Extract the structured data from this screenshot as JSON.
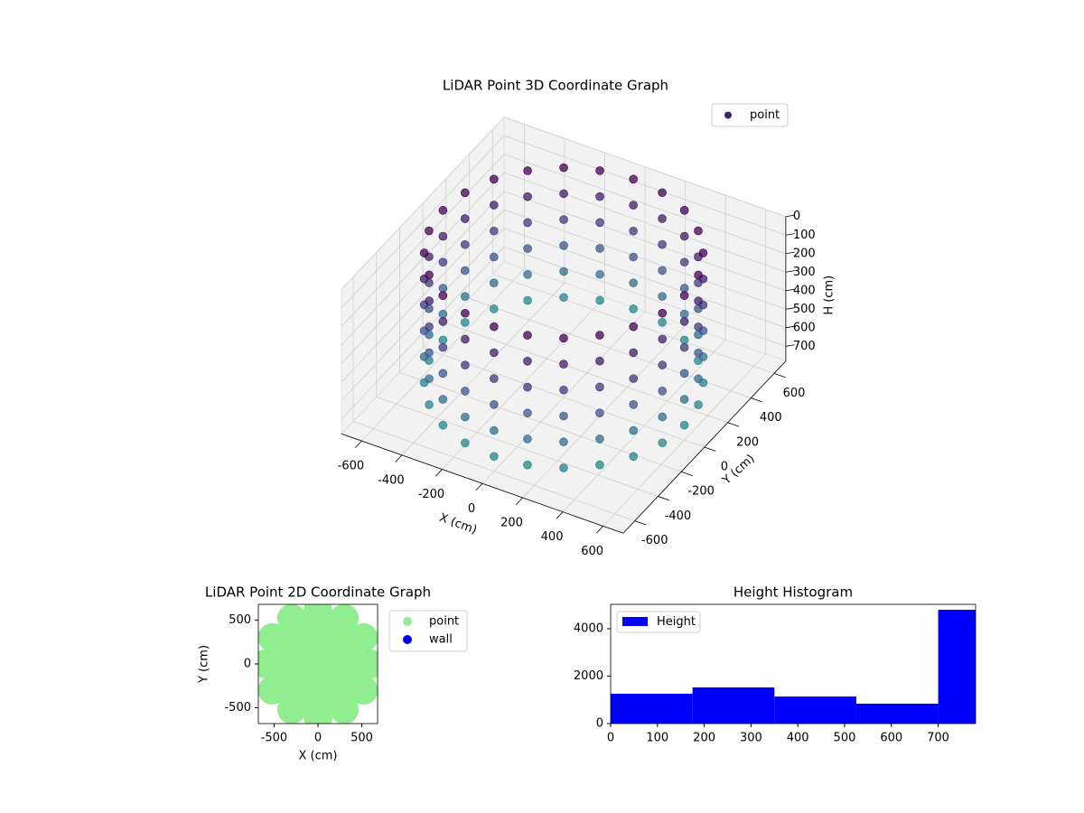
{
  "chart_data": [
    {
      "type": "scatter3d",
      "title": "LiDAR Point 3D Coordinate Graph",
      "xlabel": "X (cm)",
      "ylabel": "Y (cm)",
      "zlabel": "H (cm)",
      "series": [
        {
          "name": "point",
          "color": "#46216e",
          "x": [
            600,
            580,
            520,
            424,
            300,
            155,
            0,
            -155,
            -300,
            -424,
            -520,
            -580,
            -600,
            -580,
            -520,
            -424,
            -300,
            -155,
            0,
            155,
            300,
            424,
            520,
            580,
            600,
            580,
            520,
            424,
            300,
            155,
            0,
            -155,
            -300,
            -424,
            -520,
            -580,
            -600,
            -580,
            -520,
            -424,
            -300,
            -155,
            0,
            155,
            300,
            424,
            520,
            580,
            600,
            580,
            520,
            424,
            300,
            155,
            0,
            -155,
            -300,
            -424,
            -520,
            -580,
            -600,
            -580,
            -520,
            -424,
            -300,
            -155,
            0,
            155,
            300,
            424,
            520,
            580,
            600,
            580,
            520,
            424,
            300,
            155,
            0,
            -155,
            -300,
            -424,
            -520,
            -580,
            -600,
            -580,
            -520,
            -424,
            -300,
            -155,
            0,
            155,
            300,
            424,
            520,
            580,
            600,
            580,
            520,
            424,
            300,
            155,
            0,
            -155,
            -300,
            -424,
            -520,
            -580,
            -600,
            -580,
            -520,
            -424,
            -300,
            -155,
            0,
            155,
            300,
            424,
            520,
            580,
            600,
            580,
            520,
            424,
            300,
            155,
            0,
            -155,
            -300,
            -424,
            -520,
            -580,
            -600,
            -580,
            -520,
            -424,
            -300,
            -155,
            0,
            155,
            300,
            424,
            520,
            580
          ],
          "y": [
            0,
            155,
            300,
            424,
            520,
            580,
            600,
            580,
            520,
            424,
            300,
            155,
            0,
            -155,
            -300,
            -424,
            -520,
            -580,
            -600,
            -580,
            -520,
            -424,
            -300,
            -155,
            0,
            155,
            300,
            424,
            520,
            580,
            600,
            580,
            520,
            424,
            300,
            155,
            0,
            -155,
            -300,
            -424,
            -520,
            -580,
            -600,
            -580,
            -520,
            -424,
            -300,
            -155,
            0,
            155,
            300,
            424,
            520,
            580,
            600,
            580,
            520,
            424,
            300,
            155,
            0,
            -155,
            -300,
            -424,
            -520,
            -580,
            -600,
            -580,
            -520,
            -424,
            -300,
            -155,
            0,
            155,
            300,
            424,
            520,
            580,
            600,
            580,
            520,
            424,
            300,
            155,
            0,
            -155,
            -300,
            -424,
            -520,
            -580,
            -600,
            -580,
            -520,
            -424,
            -300,
            -155,
            0,
            155,
            300,
            424,
            520,
            580,
            600,
            580,
            520,
            424,
            300,
            155,
            0,
            -155,
            -300,
            -424,
            -520,
            -580,
            -600,
            -580,
            -520,
            -424,
            -300,
            -155,
            0,
            155,
            300,
            424,
            520,
            580,
            600,
            580,
            520,
            424,
            300,
            155,
            0,
            -155,
            -300,
            -424,
            -520,
            -580,
            -600,
            -580,
            -520,
            -424,
            -300,
            -155
          ],
          "z": [
            0,
            0,
            0,
            0,
            0,
            0,
            0,
            0,
            0,
            0,
            0,
            0,
            0,
            0,
            0,
            0,
            0,
            0,
            0,
            0,
            0,
            0,
            0,
            0,
            140,
            140,
            140,
            140,
            140,
            140,
            140,
            140,
            140,
            140,
            140,
            140,
            140,
            140,
            140,
            140,
            140,
            140,
            140,
            140,
            140,
            140,
            140,
            140,
            280,
            280,
            280,
            280,
            280,
            280,
            280,
            280,
            280,
            280,
            280,
            280,
            280,
            280,
            280,
            280,
            280,
            280,
            280,
            280,
            280,
            280,
            280,
            280,
            420,
            420,
            420,
            420,
            420,
            420,
            420,
            420,
            420,
            420,
            420,
            420,
            420,
            420,
            420,
            420,
            420,
            420,
            420,
            420,
            420,
            420,
            420,
            420,
            560,
            560,
            560,
            560,
            560,
            560,
            560,
            560,
            560,
            560,
            560,
            560,
            560,
            560,
            560,
            560,
            560,
            560,
            560,
            560,
            560,
            560,
            560,
            560,
            700,
            700,
            700,
            700,
            700,
            700,
            700,
            700,
            700,
            700,
            700,
            700,
            700,
            700,
            700,
            700,
            700,
            700,
            700,
            700,
            700,
            700,
            700,
            700
          ]
        }
      ],
      "colormap": [
        "#440154",
        "#3b528b",
        "#21918c"
      ],
      "xlim": [
        -700,
        700
      ],
      "ylim": [
        -700,
        700
      ],
      "zlim": [
        780,
        0
      ],
      "xticks": [
        -600,
        -400,
        -200,
        0,
        200,
        400,
        600
      ],
      "yticks": [
        -600,
        -400,
        -200,
        0,
        200,
        400,
        600
      ],
      "zticks": [
        0,
        100,
        200,
        300,
        400,
        500,
        600,
        700
      ],
      "azim": -60,
      "elev": 30,
      "grid": true,
      "legend": "upper right"
    },
    {
      "type": "scatter",
      "title": "LiDAR Point 2D Coordinate Graph",
      "xlabel": "X (cm)",
      "ylabel": "Y (cm)",
      "series": [
        {
          "name": "point",
          "color": "#90ee90",
          "x": [
            600,
            520,
            300,
            0,
            -300,
            -520,
            -600,
            -520,
            -300,
            0,
            300,
            520,
            400,
            346,
            200,
            0,
            -200,
            -346,
            -400,
            -346,
            -200,
            0,
            200,
            346,
            200,
            100,
            -100,
            -200,
            -100,
            100,
            0
          ],
          "y": [
            0,
            300,
            520,
            600,
            520,
            300,
            0,
            -300,
            -520,
            -600,
            -520,
            -300,
            0,
            200,
            346,
            400,
            346,
            200,
            0,
            -200,
            -346,
            -400,
            -346,
            -200,
            0,
            173,
            173,
            0,
            -173,
            -173,
            0
          ]
        },
        {
          "name": "wall",
          "color": "#0000ff",
          "x": [],
          "y": []
        }
      ],
      "xlim": [
        -680,
        680
      ],
      "ylim": [
        -680,
        680
      ],
      "xticks": [
        -500,
        0,
        500
      ],
      "yticks": [
        -500,
        0,
        500
      ],
      "legend": "outside right"
    },
    {
      "type": "hist",
      "title": "Height Histogram",
      "series": [
        {
          "name": "Height",
          "color": "#0000ff",
          "bins": [
            0,
            175,
            350,
            525,
            700,
            780
          ],
          "values": [
            1260,
            1525,
            1140,
            840,
            4800
          ]
        }
      ],
      "xlim": [
        0,
        780
      ],
      "ylim": [
        0,
        5030
      ],
      "xticks": [
        0,
        100,
        200,
        300,
        400,
        500,
        600,
        700
      ],
      "yticks": [
        0,
        2000,
        4000
      ],
      "legend": "upper left"
    }
  ]
}
